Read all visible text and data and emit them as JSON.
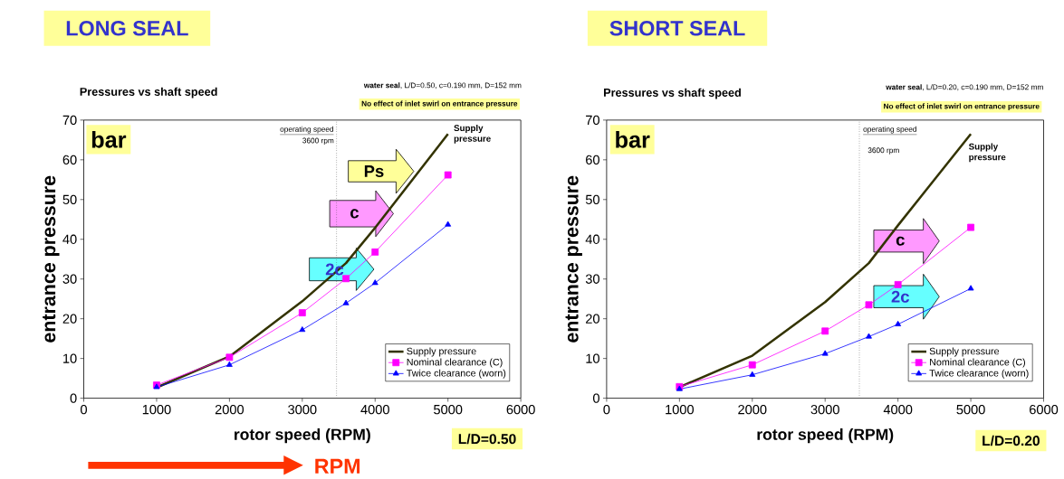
{
  "chart_data": [
    {
      "type": "line",
      "title": "LONG SEAL",
      "subtitle": "Pressures vs shaft speed",
      "xlabel": "rotor speed (RPM)",
      "ylabel": "entrance pressure",
      "x": [
        1000,
        2000,
        3000,
        3600,
        4000,
        5000
      ],
      "series": [
        {
          "name": "Supply pressure",
          "color": "#333300",
          "marker": "none",
          "values": [
            2.7,
            10.5,
            24.4,
            34.0,
            42.9,
            66.5
          ]
        },
        {
          "name": "Nominal clearance (C)",
          "color": "#ff00ff",
          "marker": "square",
          "values": [
            3.3,
            10.3,
            21.5,
            30.1,
            36.8,
            56.2
          ]
        },
        {
          "name": "Twice clearance (worn)",
          "color": "#0000ff",
          "marker": "triangle",
          "values": [
            2.8,
            8.4,
            17.2,
            23.9,
            29.0,
            43.7
          ]
        }
      ],
      "xlim": [
        0,
        6000
      ],
      "xticks": [
        0,
        1000,
        2000,
        3000,
        4000,
        5000,
        6000
      ],
      "ylim": [
        0,
        70
      ],
      "yticks": [
        0,
        10,
        20,
        30,
        40,
        50,
        60,
        70
      ],
      "line_style": "solid",
      "legend": "bottom right",
      "ref_lines": [
        {
          "axis": "x",
          "value": 3470,
          "label": "operating speed",
          "color": "#555555",
          "line_style": "dotted"
        }
      ],
      "annotations": [
        "bar",
        "**water seal**, L/D=0.50, c=0.190 mm, D=152 mm",
        "No effect of inlet swirl on entrance pressure",
        "3600 rpm",
        "Supply pressure",
        "L/D=0.50",
        "Ps",
        "c",
        "2c",
        "RPM"
      ]
    },
    {
      "type": "line",
      "title": "SHORT SEAL",
      "subtitle": "Pressures vs shaft speed",
      "xlabel": "rotor speed (RPM)",
      "ylabel": "entrance pressure",
      "x": [
        1000,
        2000,
        3000,
        3600,
        4000,
        5000
      ],
      "series": [
        {
          "name": "Supply pressure",
          "color": "#333300",
          "marker": "none",
          "values": [
            2.8,
            10.7,
            24.2,
            34.0,
            43.5,
            66.5
          ]
        },
        {
          "name": "Nominal clearance (C)",
          "color": "#ff00ff",
          "marker": "square",
          "values": [
            2.9,
            8.4,
            16.9,
            23.5,
            28.6,
            43.0
          ]
        },
        {
          "name": "Twice clearance (worn)",
          "color": "#0000ff",
          "marker": "triangle",
          "values": [
            2.3,
            5.9,
            11.2,
            15.5,
            18.6,
            27.6
          ]
        }
      ],
      "xlim": [
        0,
        6000
      ],
      "xticks": [
        0,
        1000,
        2000,
        3000,
        4000,
        5000,
        6000
      ],
      "ylim": [
        0,
        70
      ],
      "yticks": [
        0,
        10,
        20,
        30,
        40,
        50,
        60,
        70
      ],
      "line_style": "solid",
      "legend": "bottom right",
      "ref_lines": [
        {
          "axis": "x",
          "value": 3470,
          "label": "operating speed",
          "color": "#555555",
          "line_style": "dotted"
        }
      ],
      "annotations": [
        "bar",
        "**water seal**, L/D=0.20, c=0.190 mm, D=152 mm",
        "No effect of inlet swirl on entrance pressure",
        "3600 rpm",
        "Supply pressure",
        "L/D=0.20",
        "c",
        "2c"
      ]
    }
  ]
}
